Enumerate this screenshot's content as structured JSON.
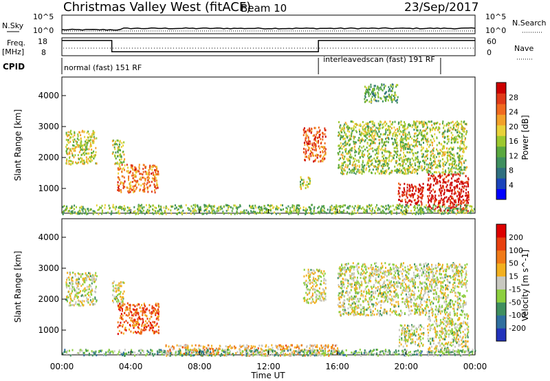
{
  "header": {
    "title": "Christmas Valley West (fitACF)",
    "beam": "Beam 10",
    "date": "23/Sep/2017"
  },
  "params": {
    "nsky_label": "N.Sky",
    "nsearch_label": "N.Search",
    "freq_label": "Freq.",
    "freq_unit": "[MHz]",
    "nave_label": "Nave",
    "cpid_label": "CPID",
    "noise_ticks": [
      "10^5",
      "10^0"
    ],
    "freq_ticks": [
      "18",
      "8"
    ],
    "nave_ticks": [
      "60",
      "0"
    ],
    "cpid_modes": [
      {
        "label": "normal (fast) 151 RF",
        "start_hr": 0,
        "end_hr": 14.9
      },
      {
        "label": "interleavedscan (fast) 191 RF",
        "start_hr": 14.9,
        "end_hr": 22.0
      }
    ],
    "freq_steps": [
      {
        "start_hr": 0,
        "end_hr": 2.9,
        "freq_mhz": 16.5
      },
      {
        "start_hr": 2.9,
        "end_hr": 14.9,
        "freq_mhz": 10.2
      },
      {
        "start_hr": 14.9,
        "end_hr": 24,
        "freq_mhz": 16.5
      }
    ]
  },
  "chart_data": [
    {
      "type": "heatmap",
      "name": "power",
      "ylabel": "Slant Range [km]",
      "yticks": [
        "1000",
        "2000",
        "3000",
        "4000"
      ],
      "xticks": [
        "00:00",
        "04:00",
        "08:00",
        "12:00",
        "16:00",
        "20:00",
        "00:00"
      ],
      "ylim": [
        200,
        4600
      ],
      "xlim_hr": [
        0,
        24
      ],
      "colorbar": {
        "label": "Power [dB]",
        "ticks": [
          "4",
          "8",
          "12",
          "16",
          "20",
          "24",
          "28"
        ],
        "colors": [
          "#0000ff",
          "#1a44bb",
          "#2f6f7f",
          "#3f8f5f",
          "#5aa83f",
          "#9cc82f",
          "#e8d23a",
          "#f2a12a",
          "#f06a1f",
          "#e03a18",
          "#cc0000"
        ]
      },
      "blobs": [
        {
          "t0": 0.2,
          "t1": 2.0,
          "r0": 1800,
          "r1": 2900,
          "level": 0.55
        },
        {
          "t0": 2.9,
          "t1": 3.6,
          "r0": 1800,
          "r1": 2600,
          "level": 0.5
        },
        {
          "t0": 3.2,
          "t1": 5.6,
          "r0": 900,
          "r1": 1800,
          "level": 0.75
        },
        {
          "t0": 14.0,
          "t1": 15.3,
          "r0": 1900,
          "r1": 3000,
          "level": 0.8
        },
        {
          "t0": 13.8,
          "t1": 14.4,
          "r0": 1000,
          "r1": 1400,
          "level": 0.5
        },
        {
          "t0": 16.0,
          "t1": 23.5,
          "r0": 1500,
          "r1": 3200,
          "level": 0.5
        },
        {
          "t0": 17.5,
          "t1": 19.5,
          "r0": 3800,
          "r1": 4400,
          "level": 0.4
        },
        {
          "t0": 19.5,
          "t1": 21.0,
          "r0": 500,
          "r1": 1200,
          "level": 0.95
        },
        {
          "t0": 21.2,
          "t1": 23.6,
          "r0": 300,
          "r1": 1500,
          "level": 0.95
        },
        {
          "t0": 0.0,
          "t1": 24.0,
          "r0": 200,
          "r1": 500,
          "level": 0.45
        }
      ]
    },
    {
      "type": "heatmap",
      "name": "velocity",
      "ylabel": "Slant Range [km]",
      "xlabel": "Time UT",
      "yticks": [
        "1000",
        "2000",
        "3000",
        "4000"
      ],
      "xticks": [
        "00:00",
        "04:00",
        "08:00",
        "12:00",
        "16:00",
        "20:00",
        "00:00"
      ],
      "ylim": [
        200,
        4600
      ],
      "xlim_hr": [
        0,
        24
      ],
      "colorbar": {
        "label": "Velocity [m s^-1]",
        "ticks": [
          "200",
          "100",
          "50",
          "15",
          "-15",
          "-50",
          "-100",
          "-200"
        ],
        "colors": [
          "#2233bb",
          "#2f6f9f",
          "#3f8f5f",
          "#8ccf3f",
          "#c8c8c0",
          "#f2b020",
          "#f07a18",
          "#e8400f",
          "#dd0000"
        ]
      },
      "blobs": [
        {
          "t0": 0.2,
          "t1": 2.0,
          "r0": 1800,
          "r1": 2900,
          "level": 0.48
        },
        {
          "t0": 2.9,
          "t1": 3.6,
          "r0": 1800,
          "r1": 2600,
          "level": 0.48
        },
        {
          "t0": 3.2,
          "t1": 5.6,
          "r0": 900,
          "r1": 1900,
          "level": 0.78
        },
        {
          "t0": 14.0,
          "t1": 15.3,
          "r0": 1900,
          "r1": 3000,
          "level": 0.5
        },
        {
          "t0": 16.0,
          "t1": 23.5,
          "r0": 1500,
          "r1": 3200,
          "level": 0.48
        },
        {
          "t0": 19.5,
          "t1": 21.0,
          "r0": 500,
          "r1": 1200,
          "level": 0.48
        },
        {
          "t0": 21.2,
          "t1": 23.6,
          "r0": 300,
          "r1": 1500,
          "level": 0.48
        },
        {
          "t0": 6.0,
          "t1": 16.0,
          "r0": 200,
          "r1": 550,
          "level": 0.62
        },
        {
          "t0": 0.0,
          "t1": 24.0,
          "r0": 200,
          "r1": 400,
          "level": 0.35
        }
      ]
    }
  ]
}
